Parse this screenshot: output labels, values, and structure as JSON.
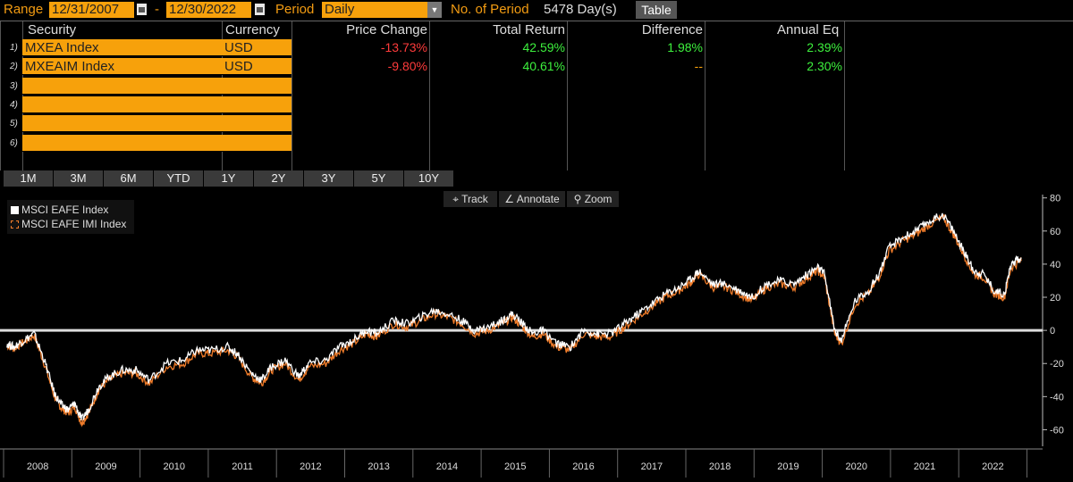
{
  "toolbar": {
    "range_label": "Range",
    "start_date": "12/31/2007",
    "dash": "-",
    "end_date": "12/30/2022",
    "period_label": "Period",
    "period_value": "Daily",
    "num_period_label": "No. of Period",
    "num_period_value": "5478 Day(s)",
    "table_button": "Table"
  },
  "table": {
    "headers": {
      "security": "Security",
      "currency": "Currency",
      "price_change": "Price Change",
      "total_return": "Total Return",
      "difference": "Difference",
      "annual_eq": "Annual Eq"
    },
    "rows": [
      {
        "num": "1)",
        "security": "MXEA Index",
        "currency": "USD",
        "price_change": "-13.73%",
        "total_return": "42.59%",
        "difference": "1.98%",
        "annual_eq": "2.39%"
      },
      {
        "num": "2)",
        "security": "MXEAIM Index",
        "currency": "USD",
        "price_change": "-9.80%",
        "total_return": "40.61%",
        "difference": "--",
        "annual_eq": "2.30%"
      },
      {
        "num": "3)",
        "security": "",
        "currency": ""
      },
      {
        "num": "4)",
        "security": "",
        "currency": ""
      },
      {
        "num": "5)",
        "security": "",
        "currency": ""
      },
      {
        "num": "6)",
        "security": "",
        "currency": ""
      }
    ]
  },
  "range_buttons": [
    "1M",
    "3M",
    "6M",
    "YTD",
    "1Y",
    "2Y",
    "3Y",
    "5Y",
    "10Y"
  ],
  "chart_tools": {
    "track": "Track",
    "annotate": "Annotate",
    "zoom": "Zoom"
  },
  "chart_data": {
    "type": "line",
    "x_categories": [
      "2008",
      "2009",
      "2010",
      "2011",
      "2012",
      "2013",
      "2014",
      "2015",
      "2016",
      "2017",
      "2018",
      "2019",
      "2020",
      "2021",
      "2022"
    ],
    "y_ticks": [
      80,
      60,
      40,
      20,
      0,
      -20,
      -40,
      -60
    ],
    "ylim": [
      -70,
      82
    ],
    "zero_line": true,
    "legend_position": "top-left",
    "series": [
      {
        "name": "MSCI EAFE Index",
        "color": "#ffffff",
        "x": [
          2008.0,
          2008.1,
          2008.25,
          2008.4,
          2008.55,
          2008.7,
          2008.8,
          2008.9,
          2009.0,
          2009.1,
          2009.2,
          2009.35,
          2009.5,
          2009.7,
          2009.9,
          2010.1,
          2010.35,
          2010.6,
          2010.8,
          2011.0,
          2011.25,
          2011.4,
          2011.6,
          2011.75,
          2011.9,
          2012.1,
          2012.3,
          2012.45,
          2012.7,
          2012.9,
          2013.1,
          2013.3,
          2013.45,
          2013.7,
          2013.9,
          2014.1,
          2014.3,
          2014.5,
          2014.7,
          2014.9,
          2015.1,
          2015.3,
          2015.45,
          2015.6,
          2015.75,
          2015.9,
          2016.1,
          2016.3,
          2016.5,
          2016.7,
          2016.9,
          2017.1,
          2017.3,
          2017.5,
          2017.7,
          2017.9,
          2018.05,
          2018.2,
          2018.4,
          2018.6,
          2018.8,
          2018.98,
          2019.2,
          2019.4,
          2019.6,
          2019.8,
          2019.95,
          2020.05,
          2020.2,
          2020.3,
          2020.5,
          2020.7,
          2020.85,
          2021.0,
          2021.2,
          2021.4,
          2021.6,
          2021.8,
          2021.95,
          2022.1,
          2022.25,
          2022.4,
          2022.55,
          2022.7,
          2022.8,
          2022.95
        ],
        "y": [
          -8,
          -10,
          -6,
          -2,
          -18,
          -38,
          -45,
          -48,
          -44,
          -54,
          -48,
          -34,
          -28,
          -24,
          -24,
          -30,
          -20,
          -18,
          -12,
          -12,
          -10,
          -14,
          -26,
          -30,
          -22,
          -18,
          -28,
          -20,
          -18,
          -10,
          -6,
          0,
          -2,
          6,
          4,
          8,
          12,
          10,
          6,
          0,
          2,
          6,
          10,
          4,
          -2,
          0,
          -8,
          -10,
          0,
          -2,
          -2,
          4,
          10,
          16,
          22,
          26,
          30,
          36,
          28,
          28,
          24,
          20,
          28,
          30,
          28,
          34,
          38,
          34,
          0,
          -6,
          18,
          24,
          34,
          50,
          56,
          60,
          66,
          70,
          60,
          48,
          36,
          34,
          24,
          22,
          40,
          44
        ]
      },
      {
        "name": "MSCI EAFE IMI Index",
        "color": "#f07c2a",
        "x": [
          2008.0,
          2008.1,
          2008.25,
          2008.4,
          2008.55,
          2008.7,
          2008.8,
          2008.9,
          2009.0,
          2009.1,
          2009.2,
          2009.35,
          2009.5,
          2009.7,
          2009.9,
          2010.1,
          2010.35,
          2010.6,
          2010.8,
          2011.0,
          2011.25,
          2011.4,
          2011.6,
          2011.75,
          2011.9,
          2012.1,
          2012.3,
          2012.45,
          2012.7,
          2012.9,
          2013.1,
          2013.3,
          2013.45,
          2013.7,
          2013.9,
          2014.1,
          2014.3,
          2014.5,
          2014.7,
          2014.9,
          2015.1,
          2015.3,
          2015.45,
          2015.6,
          2015.75,
          2015.9,
          2016.1,
          2016.3,
          2016.5,
          2016.7,
          2016.9,
          2017.1,
          2017.3,
          2017.5,
          2017.7,
          2017.9,
          2018.05,
          2018.2,
          2018.4,
          2018.6,
          2018.8,
          2018.98,
          2019.2,
          2019.4,
          2019.6,
          2019.8,
          2019.95,
          2020.05,
          2020.2,
          2020.3,
          2020.5,
          2020.7,
          2020.85,
          2021.0,
          2021.2,
          2021.4,
          2021.6,
          2021.8,
          2021.95,
          2022.1,
          2022.25,
          2022.4,
          2022.55,
          2022.7,
          2022.8,
          2022.95
        ],
        "y": [
          -9,
          -11,
          -7,
          -3,
          -20,
          -40,
          -47,
          -50,
          -46,
          -56,
          -50,
          -36,
          -30,
          -26,
          -26,
          -32,
          -22,
          -20,
          -14,
          -14,
          -12,
          -16,
          -28,
          -32,
          -24,
          -20,
          -30,
          -22,
          -20,
          -12,
          -8,
          -2,
          -4,
          4,
          2,
          6,
          10,
          8,
          4,
          -2,
          0,
          4,
          8,
          2,
          -4,
          -2,
          -10,
          -12,
          -2,
          -4,
          -4,
          2,
          8,
          14,
          20,
          24,
          28,
          34,
          26,
          26,
          22,
          18,
          26,
          28,
          26,
          32,
          36,
          32,
          -2,
          -8,
          16,
          22,
          32,
          48,
          54,
          58,
          64,
          68,
          58,
          46,
          34,
          32,
          22,
          20,
          38,
          42
        ]
      }
    ]
  }
}
